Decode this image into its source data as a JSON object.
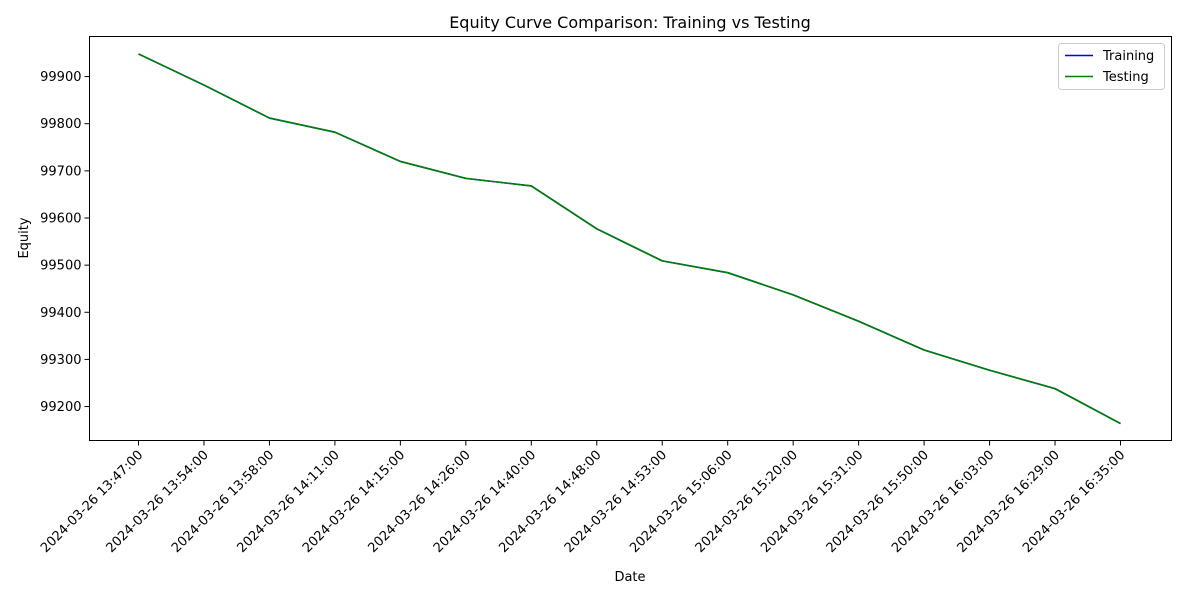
{
  "chart_data": {
    "type": "line",
    "title": "Equity Curve Comparison: Training vs Testing",
    "xlabel": "Date",
    "ylabel": "Equity",
    "x": [
      "2024-03-26 13:47:00",
      "2024-03-26 13:54:00",
      "2024-03-26 13:58:00",
      "2024-03-26 14:11:00",
      "2024-03-26 14:15:00",
      "2024-03-26 14:26:00",
      "2024-03-26 14:40:00",
      "2024-03-26 14:48:00",
      "2024-03-26 14:53:00",
      "2024-03-26 15:06:00",
      "2024-03-26 15:20:00",
      "2024-03-26 15:31:00",
      "2024-03-26 15:50:00",
      "2024-03-26 16:03:00",
      "2024-03-26 16:29:00",
      "2024-03-26 16:35:00"
    ],
    "series": [
      {
        "name": "Training",
        "color": "#0000ff",
        "values": [
          99948,
          99882,
          99812,
          99782,
          99720,
          99684,
          99668,
          99577,
          99509,
          99484,
          99437,
          99381,
          99320,
          99277,
          99238,
          99164
        ]
      },
      {
        "name": "Testing",
        "color": "#008000",
        "values": [
          99948,
          99882,
          99812,
          99782,
          99720,
          99684,
          99668,
          99577,
          99509,
          99484,
          99437,
          99381,
          99320,
          99277,
          99238,
          99164
        ]
      }
    ],
    "yticks": [
      99200,
      99300,
      99400,
      99500,
      99600,
      99700,
      99800,
      99900
    ],
    "ylim": [
      99128,
      99985
    ],
    "grid": false,
    "legend_position": "top-right"
  }
}
